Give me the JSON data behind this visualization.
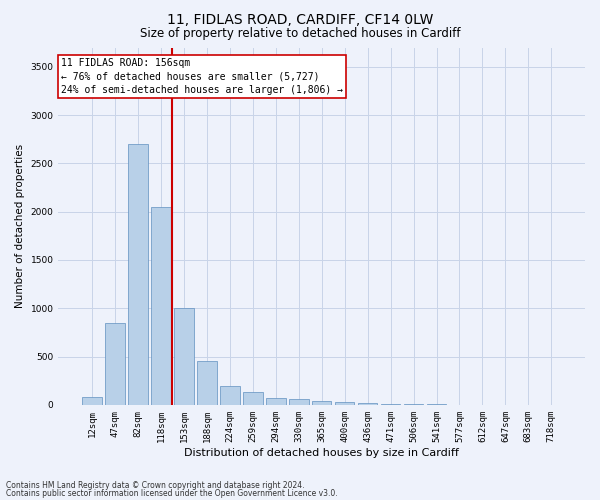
{
  "title1": "11, FIDLAS ROAD, CARDIFF, CF14 0LW",
  "title2": "Size of property relative to detached houses in Cardiff",
  "xlabel": "Distribution of detached houses by size in Cardiff",
  "ylabel": "Number of detached properties",
  "annotation_line1": "11 FIDLAS ROAD: 156sqm",
  "annotation_line2": "← 76% of detached houses are smaller (5,727)",
  "annotation_line3": "24% of semi-detached houses are larger (1,806) →",
  "footnote1": "Contains HM Land Registry data © Crown copyright and database right 2024.",
  "footnote2": "Contains public sector information licensed under the Open Government Licence v3.0.",
  "bar_color": "#b8d0e8",
  "bar_edge_color": "#6090c0",
  "grid_color": "#c8d4e8",
  "vline_color": "#cc0000",
  "vline_index": 3.5,
  "categories": [
    "12sqm",
    "47sqm",
    "82sqm",
    "118sqm",
    "153sqm",
    "188sqm",
    "224sqm",
    "259sqm",
    "294sqm",
    "330sqm",
    "365sqm",
    "400sqm",
    "436sqm",
    "471sqm",
    "506sqm",
    "541sqm",
    "577sqm",
    "612sqm",
    "647sqm",
    "683sqm",
    "718sqm"
  ],
  "values": [
    80,
    850,
    2700,
    2050,
    1000,
    450,
    200,
    130,
    75,
    60,
    40,
    30,
    20,
    10,
    5,
    4,
    3,
    2,
    1,
    1,
    0
  ],
  "ylim": [
    0,
    3700
  ],
  "yticks": [
    0,
    500,
    1000,
    1500,
    2000,
    2500,
    3000,
    3500
  ],
  "background_color": "#eef2fb",
  "plot_bg_color": "#eef2fb",
  "title1_fontsize": 10,
  "title2_fontsize": 8.5,
  "xlabel_fontsize": 8,
  "ylabel_fontsize": 7.5,
  "tick_fontsize": 6.5,
  "ann_fontsize": 7,
  "footnote_fontsize": 5.5
}
